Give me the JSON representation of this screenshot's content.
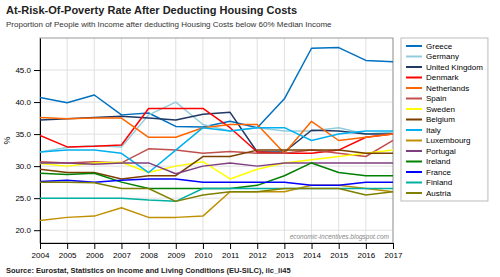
{
  "chart_data": {
    "type": "line",
    "title": "At-Risk-Of-Poverty Rate After Deducting Housing Costs",
    "subtitle": "Proportion of People with Income after deducting Housing Costs below 60% Median Income",
    "ylabel": "%",
    "source": "Source: Eurostat, Statistics on Income and Living Conditions (EU-SILC), ilc_li45",
    "annotations": [
      "economic-incentives.blogspot.com"
    ],
    "x": [
      2004,
      2005,
      2006,
      2007,
      2008,
      2009,
      2010,
      2011,
      2012,
      2013,
      2014,
      2015,
      2016,
      2017
    ],
    "xlim": [
      2004,
      2017
    ],
    "xticks": [
      2004,
      2005,
      2006,
      2007,
      2008,
      2009,
      2010,
      2011,
      2012,
      2013,
      2014,
      2015,
      2016,
      2017
    ],
    "ylim": [
      18.0,
      50.0
    ],
    "yticks": [
      {
        "value": 20.0,
        "label": "20.0"
      },
      {
        "value": 25.0,
        "label": "25.0"
      },
      {
        "value": 30.0,
        "label": "30.0"
      },
      {
        "value": 35.0,
        "label": "35.0"
      },
      {
        "value": 40.0,
        "label": "40.0"
      },
      {
        "value": 45.0,
        "label": "45.0"
      }
    ],
    "grid": true,
    "legend": "right",
    "series": [
      {
        "name": "Greece",
        "color": "#0070C0",
        "values": [
          40.7,
          39.9,
          41.1,
          38.0,
          38.3,
          36.2,
          36.1,
          37.0,
          36.0,
          40.5,
          48.4,
          48.5,
          46.5,
          46.3
        ]
      },
      {
        "name": "Germany",
        "color": "#92CDDC",
        "values": [
          32.2,
          32.9,
          33.2,
          33.0,
          38.0,
          40.0,
          36.5,
          35.5,
          36.0,
          35.5,
          35.5,
          36.0,
          35.0,
          35.3
        ]
      },
      {
        "name": "United Kingdom",
        "color": "#1F3864",
        "values": [
          37.2,
          37.4,
          37.6,
          37.8,
          37.5,
          37.2,
          38.1,
          38.4,
          32.2,
          32.2,
          35.6,
          35.5,
          35.0,
          35.0
        ]
      },
      {
        "name": "Denmark",
        "color": "#FF0000",
        "values": [
          34.8,
          33.0,
          33.1,
          33.3,
          39.0,
          39.0,
          39.0,
          36.0,
          32.2,
          32.0,
          32.0,
          32.5,
          34.5,
          35.0
        ]
      },
      {
        "name": "Netherlands",
        "color": "#FF6600",
        "values": [
          37.6,
          37.4,
          37.5,
          37.5,
          34.5,
          34.5,
          36.0,
          36.5,
          36.5,
          32.0,
          37.0,
          34.0,
          34.5,
          35.0
        ]
      },
      {
        "name": "Spain",
        "color": "#C0504D",
        "values": [
          30.7,
          30.5,
          30.7,
          30.5,
          32.7,
          32.5,
          32.0,
          32.3,
          32.0,
          32.0,
          32.5,
          32.0,
          31.5,
          34.0
        ]
      },
      {
        "name": "Sweden",
        "color": "#FFFF00",
        "values": [
          30.4,
          30.0,
          30.5,
          30.6,
          29.0,
          30.0,
          30.7,
          28.0,
          29.5,
          30.5,
          31.0,
          31.5,
          32.0,
          32.5
        ]
      },
      {
        "name": "Belgium",
        "color": "#7B3F00",
        "values": [
          29.5,
          29.0,
          29.0,
          28.0,
          28.5,
          28.5,
          31.5,
          31.5,
          32.5,
          32.5,
          32.5,
          32.5,
          32.0,
          32.0
        ]
      },
      {
        "name": "Italy",
        "color": "#00B0F0",
        "values": [
          32.2,
          32.5,
          32.5,
          32.0,
          29.0,
          32.5,
          36.0,
          35.5,
          36.0,
          36.0,
          34.0,
          35.0,
          35.5,
          35.5
        ]
      },
      {
        "name": "Luxembourg",
        "color": "#C09000",
        "values": [
          21.5,
          22.0,
          22.2,
          23.5,
          22.0,
          22.0,
          22.2,
          26.0,
          26.0,
          26.0,
          27.0,
          27.0,
          26.5,
          26.0
        ]
      },
      {
        "name": "Portugal",
        "color": "#7F3F7F",
        "values": [
          30.5,
          30.5,
          30.3,
          30.5,
          30.5,
          28.8,
          30.0,
          30.5,
          30.0,
          30.5,
          30.5,
          30.5,
          30.5,
          30.5
        ]
      },
      {
        "name": "Ireland",
        "color": "#008000",
        "values": [
          28.9,
          28.7,
          28.9,
          27.5,
          26.5,
          26.5,
          26.5,
          26.5,
          27.0,
          28.5,
          30.5,
          29.0,
          28.5,
          28.5
        ]
      },
      {
        "name": "France",
        "color": "#0000FF",
        "values": [
          27.6,
          27.8,
          27.5,
          27.8,
          28.0,
          28.0,
          27.5,
          27.5,
          27.5,
          27.5,
          27.0,
          27.0,
          27.5,
          27.5
        ]
      },
      {
        "name": "Finland",
        "color": "#00B0A0",
        "values": [
          25.0,
          25.0,
          25.0,
          25.0,
          24.7,
          24.5,
          26.5,
          26.5,
          26.5,
          26.5,
          26.5,
          26.5,
          26.5,
          26.5
        ]
      },
      {
        "name": "Austria",
        "color": "#808000",
        "values": [
          27.5,
          27.5,
          27.4,
          26.5,
          26.5,
          24.5,
          25.5,
          26.0,
          26.0,
          26.5,
          26.5,
          26.5,
          25.5,
          26.0
        ]
      }
    ]
  }
}
